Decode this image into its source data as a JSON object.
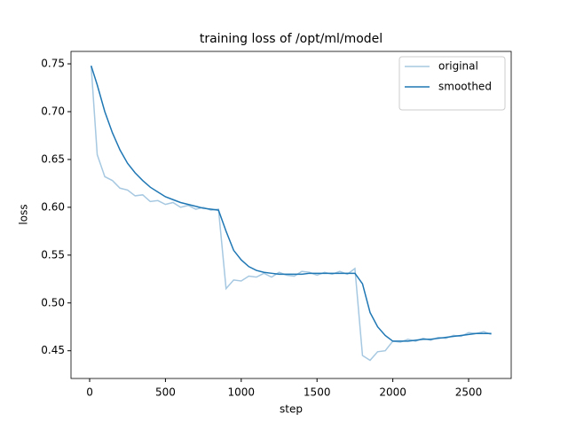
{
  "chart_data": {
    "type": "line",
    "title": "training loss of /opt/ml/model",
    "x_label": "step",
    "y_label": "loss",
    "x": [
      10,
      50,
      100,
      150,
      200,
      250,
      300,
      350,
      400,
      450,
      500,
      550,
      600,
      650,
      700,
      750,
      800,
      850,
      900,
      950,
      1000,
      1050,
      1100,
      1150,
      1200,
      1250,
      1300,
      1350,
      1400,
      1450,
      1500,
      1550,
      1600,
      1650,
      1700,
      1750,
      1800,
      1850,
      1900,
      1950,
      2000,
      2050,
      2100,
      2150,
      2200,
      2250,
      2300,
      2350,
      2400,
      2450,
      2500,
      2550,
      2600,
      2650
    ],
    "series": [
      {
        "name": "original",
        "color": "#a6c8e1",
        "values": [
          0.748,
          0.655,
          0.632,
          0.628,
          0.62,
          0.618,
          0.612,
          0.613,
          0.606,
          0.607,
          0.603,
          0.605,
          0.6,
          0.602,
          0.598,
          0.6,
          0.597,
          0.598,
          0.515,
          0.524,
          0.523,
          0.528,
          0.527,
          0.531,
          0.527,
          0.532,
          0.529,
          0.528,
          0.533,
          0.532,
          0.529,
          0.532,
          0.53,
          0.533,
          0.53,
          0.536,
          0.445,
          0.44,
          0.449,
          0.45,
          0.46,
          0.459,
          0.462,
          0.46,
          0.463,
          0.461,
          0.464,
          0.463,
          0.466,
          0.465,
          0.469,
          0.468,
          0.47,
          0.467
        ]
      },
      {
        "name": "smoothed",
        "color": "#1f77b4",
        "values": [
          0.748,
          0.728,
          0.7,
          0.678,
          0.66,
          0.646,
          0.636,
          0.628,
          0.621,
          0.616,
          0.611,
          0.608,
          0.605,
          0.603,
          0.601,
          0.599,
          0.598,
          0.597,
          0.575,
          0.555,
          0.545,
          0.538,
          0.534,
          0.532,
          0.531,
          0.53,
          0.53,
          0.53,
          0.53,
          0.531,
          0.531,
          0.531,
          0.531,
          0.531,
          0.531,
          0.531,
          0.52,
          0.49,
          0.475,
          0.466,
          0.46,
          0.46,
          0.46,
          0.461,
          0.462,
          0.462,
          0.463,
          0.464,
          0.465,
          0.466,
          0.467,
          0.468,
          0.468,
          0.468
        ]
      }
    ],
    "xlim": [
      -123,
      2781
    ],
    "ylim": [
      0.421,
      0.763
    ],
    "xticks": [
      0,
      500,
      1000,
      1500,
      2000,
      2500
    ],
    "yticks": [
      0.45,
      {
        "value": 0.5,
        "label": "0.50"
      },
      0.55,
      {
        "value": 0.6,
        "label": "0.60"
      },
      0.65,
      {
        "value": 0.7,
        "label": "0.70"
      },
      0.75
    ],
    "legend": "upper right",
    "grid": false
  }
}
